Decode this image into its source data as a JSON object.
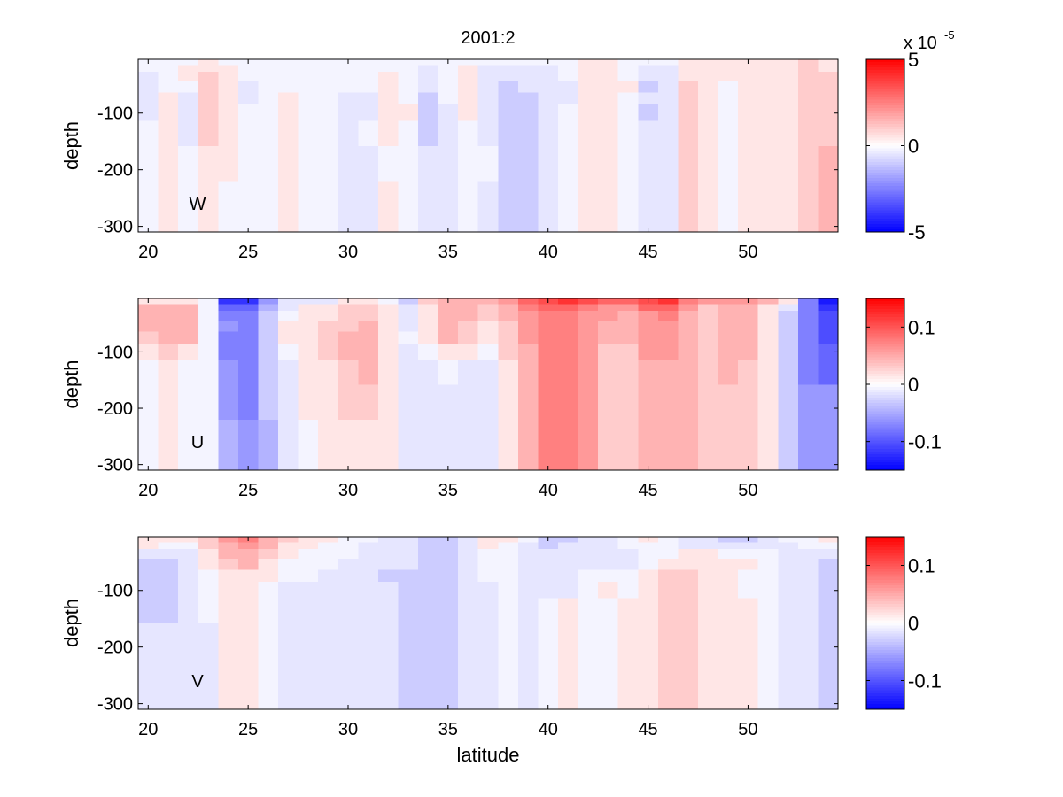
{
  "figure": {
    "title": "2001:2",
    "xlabel": "latitude"
  },
  "colors": {
    "neg": "#0000ff",
    "zero": "#ffffff",
    "pos": "#ff0000",
    "zero_tint": "#f4f4ff",
    "axis": "#000000"
  },
  "chart_data": [
    {
      "type": "heatmap",
      "panel_label": "W",
      "title": "2001:2",
      "xlabel": "",
      "ylabel": "depth",
      "xlim": [
        19.5,
        54.5
      ],
      "ylim": [
        -310,
        -5
      ],
      "xticks": [
        20,
        25,
        30,
        35,
        40,
        45,
        50
      ],
      "xtick_labels": [
        "20",
        "25",
        "30",
        "35",
        "40",
        "45",
        "50"
      ],
      "yticks": [
        -100,
        -200,
        -300
      ],
      "ytick_labels": [
        "-100",
        "-200",
        "-300"
      ],
      "latitudes": [
        20,
        21,
        22,
        23,
        24,
        25,
        26,
        27,
        28,
        29,
        30,
        31,
        32,
        33,
        34,
        35,
        36,
        37,
        38,
        39,
        40,
        41,
        42,
        43,
        44,
        45,
        46,
        47,
        48,
        49,
        50,
        51,
        52,
        53,
        54
      ],
      "depth_edges": [
        -5,
        -15,
        -27,
        -44,
        -64,
        -85,
        -114,
        -158,
        -220,
        -310
      ],
      "value_unit_scale": 5e-06,
      "values_note": "cell value = entry × value_unit_scale; rows listed per latitude from top depth layer to bottom",
      "values": [
        [
          0,
          0,
          -1,
          -1,
          -1,
          -1,
          0,
          0,
          0
        ],
        [
          0,
          0,
          0,
          0,
          1,
          1,
          1,
          1,
          1
        ],
        [
          0,
          1,
          1,
          0,
          -1,
          -1,
          -1,
          0,
          0
        ],
        [
          1,
          1,
          2,
          2,
          2,
          2,
          2,
          1,
          1
        ],
        [
          0,
          1,
          1,
          1,
          1,
          1,
          1,
          1,
          0
        ],
        [
          0,
          0,
          0,
          -1,
          -1,
          0,
          0,
          0,
          0
        ],
        [
          0,
          0,
          0,
          0,
          0,
          0,
          0,
          0,
          0
        ],
        [
          0,
          0,
          0,
          0,
          1,
          1,
          1,
          1,
          1
        ],
        [
          0,
          0,
          0,
          0,
          0,
          0,
          0,
          0,
          0
        ],
        [
          0,
          0,
          0,
          0,
          0,
          0,
          0,
          0,
          0
        ],
        [
          0,
          0,
          0,
          0,
          -1,
          -1,
          -1,
          -1,
          -1
        ],
        [
          0,
          0,
          0,
          0,
          -1,
          -1,
          0,
          -1,
          -1
        ],
        [
          0,
          0,
          1,
          1,
          1,
          1,
          1,
          0,
          1
        ],
        [
          0,
          0,
          0,
          0,
          0,
          1,
          0,
          0,
          0
        ],
        [
          0,
          -1,
          -1,
          -1,
          -2,
          -2,
          -2,
          -1,
          -1
        ],
        [
          0,
          0,
          0,
          0,
          0,
          -1,
          -1,
          -1,
          -1
        ],
        [
          0,
          1,
          1,
          1,
          1,
          1,
          0,
          0,
          0
        ],
        [
          0,
          -1,
          -1,
          -1,
          -1,
          -1,
          -1,
          0,
          -1
        ],
        [
          0,
          -1,
          -1,
          -2,
          -2,
          -2,
          -2,
          -2,
          -2
        ],
        [
          0,
          -1,
          -1,
          -1,
          -2,
          -2,
          -2,
          -2,
          -2
        ],
        [
          0,
          -1,
          -1,
          -1,
          -1,
          -1,
          -1,
          -1,
          -1
        ],
        [
          0,
          0,
          0,
          -1,
          -1,
          0,
          0,
          0,
          0
        ],
        [
          1,
          1,
          1,
          1,
          1,
          1,
          1,
          1,
          1
        ],
        [
          1,
          1,
          1,
          1,
          1,
          1,
          1,
          1,
          1
        ],
        [
          0,
          0,
          0,
          1,
          0,
          0,
          0,
          0,
          0
        ],
        [
          0,
          -1,
          -1,
          -2,
          -1,
          -2,
          -1,
          -1,
          -1
        ],
        [
          0,
          -1,
          -1,
          -1,
          -1,
          -1,
          -1,
          -1,
          -1
        ],
        [
          1,
          1,
          1,
          2,
          2,
          2,
          2,
          2,
          2
        ],
        [
          1,
          1,
          1,
          1,
          1,
          1,
          1,
          1,
          1
        ],
        [
          1,
          1,
          1,
          0,
          0,
          0,
          0,
          0,
          0
        ],
        [
          1,
          1,
          1,
          1,
          1,
          1,
          1,
          1,
          1
        ],
        [
          1,
          1,
          1,
          1,
          1,
          1,
          1,
          1,
          1
        ],
        [
          1,
          1,
          1,
          1,
          1,
          1,
          1,
          1,
          1
        ],
        [
          2,
          2,
          2,
          2,
          2,
          2,
          2,
          2,
          2
        ],
        [
          1,
          1,
          2,
          2,
          2,
          2,
          2,
          3,
          3
        ]
      ],
      "colorbar": {
        "clim": [
          -5,
          5
        ],
        "ticks": [
          5,
          0,
          -5
        ],
        "tick_labels": [
          "5",
          "0",
          "-5"
        ],
        "exponent_label": "x 10",
        "exponent": "-5"
      }
    },
    {
      "type": "heatmap",
      "panel_label": "U",
      "xlabel": "",
      "ylabel": "depth",
      "xlim": [
        19.5,
        54.5
      ],
      "ylim": [
        -310,
        -5
      ],
      "xticks": [
        20,
        25,
        30,
        35,
        40,
        45,
        50
      ],
      "xtick_labels": [
        "20",
        "25",
        "30",
        "35",
        "40",
        "45",
        "50"
      ],
      "yticks": [
        -100,
        -200,
        -300
      ],
      "ytick_labels": [
        "-100",
        "-200",
        "-300"
      ],
      "latitudes": [
        20,
        21,
        22,
        23,
        24,
        25,
        26,
        27,
        28,
        29,
        30,
        31,
        32,
        33,
        34,
        35,
        36,
        37,
        38,
        39,
        40,
        41,
        42,
        43,
        44,
        45,
        46,
        47,
        48,
        49,
        50,
        51,
        52,
        53,
        54
      ],
      "depth_edges": [
        -5,
        -15,
        -27,
        -44,
        -64,
        -85,
        -114,
        -158,
        -220,
        -310
      ],
      "value_unit_scale": 0.015,
      "values_note": "cell value = entry × value_unit_scale; rows listed per latitude from top depth layer to bottom",
      "values": [
        [
          1,
          3,
          3,
          3,
          2,
          1,
          0,
          0,
          0
        ],
        [
          1,
          3,
          3,
          3,
          3,
          2,
          1,
          1,
          1
        ],
        [
          1,
          3,
          3,
          3,
          3,
          1,
          0,
          0,
          0
        ],
        [
          0,
          0,
          0,
          0,
          0,
          0,
          0,
          0,
          0
        ],
        [
          -8,
          -6,
          -5,
          -4,
          -5,
          -5,
          -4,
          -4,
          -3
        ],
        [
          -8,
          -6,
          -5,
          -5,
          -5,
          -5,
          -5,
          -5,
          -4
        ],
        [
          -4,
          -3,
          -2,
          -2,
          -2,
          -2,
          -2,
          -2,
          -3
        ],
        [
          -1,
          -1,
          0,
          1,
          1,
          0,
          -1,
          -1,
          -1
        ],
        [
          -1,
          1,
          1,
          1,
          1,
          1,
          1,
          1,
          0
        ],
        [
          -1,
          1,
          1,
          2,
          2,
          2,
          1,
          1,
          1
        ],
        [
          1,
          2,
          2,
          2,
          3,
          3,
          2,
          2,
          1
        ],
        [
          1,
          2,
          2,
          3,
          3,
          3,
          3,
          2,
          1
        ],
        [
          0,
          1,
          1,
          1,
          1,
          1,
          1,
          1,
          1
        ],
        [
          -2,
          -1,
          -1,
          -1,
          0,
          -1,
          -1,
          -1,
          -1
        ],
        [
          2,
          1,
          1,
          1,
          1,
          0,
          -1,
          -1,
          -1
        ],
        [
          3,
          3,
          3,
          3,
          3,
          1,
          0,
          -1,
          -1
        ],
        [
          3,
          3,
          3,
          2,
          2,
          1,
          -1,
          -1,
          -1
        ],
        [
          3,
          2,
          2,
          1,
          1,
          0,
          -1,
          -1,
          -1
        ],
        [
          4,
          3,
          3,
          2,
          2,
          2,
          1,
          1,
          1
        ],
        [
          6,
          5,
          4,
          4,
          4,
          3,
          3,
          3,
          3
        ],
        [
          7,
          6,
          5,
          5,
          5,
          5,
          5,
          5,
          5
        ],
        [
          8,
          6,
          5,
          5,
          5,
          5,
          5,
          5,
          5
        ],
        [
          7,
          5,
          4,
          4,
          4,
          4,
          4,
          4,
          4
        ],
        [
          6,
          4,
          4,
          3,
          3,
          2,
          2,
          2,
          2
        ],
        [
          6,
          4,
          3,
          3,
          3,
          2,
          2,
          2,
          2
        ],
        [
          7,
          6,
          4,
          4,
          4,
          4,
          3,
          3,
          3
        ],
        [
          8,
          6,
          5,
          4,
          4,
          4,
          3,
          3,
          3
        ],
        [
          5,
          4,
          3,
          3,
          3,
          3,
          3,
          3,
          3
        ],
        [
          4,
          2,
          2,
          2,
          2,
          2,
          2,
          2,
          2
        ],
        [
          4,
          3,
          3,
          3,
          3,
          3,
          3,
          2,
          2
        ],
        [
          4,
          3,
          3,
          3,
          3,
          3,
          2,
          2,
          2
        ],
        [
          3,
          1,
          1,
          1,
          1,
          1,
          1,
          1,
          1
        ],
        [
          1,
          -1,
          -2,
          -2,
          -2,
          -2,
          -2,
          -2,
          -2
        ],
        [
          -5,
          -5,
          -5,
          -5,
          -5,
          -5,
          -5,
          -4,
          -4
        ],
        [
          -9,
          -8,
          -7,
          -7,
          -7,
          -6,
          -6,
          -4,
          -4
        ]
      ],
      "colorbar": {
        "clim": [
          -0.15,
          0.15
        ],
        "ticks": [
          0.1,
          0,
          -0.1
        ],
        "tick_labels": [
          "0.1",
          "0",
          "-0.1"
        ]
      }
    },
    {
      "type": "heatmap",
      "panel_label": "V",
      "xlabel": "latitude",
      "ylabel": "depth",
      "xlim": [
        19.5,
        54.5
      ],
      "ylim": [
        -310,
        -5
      ],
      "xticks": [
        20,
        25,
        30,
        35,
        40,
        45,
        50
      ],
      "xtick_labels": [
        "20",
        "25",
        "30",
        "35",
        "40",
        "45",
        "50"
      ],
      "yticks": [
        -100,
        -200,
        -300
      ],
      "ytick_labels": [
        "-100",
        "-200",
        "-300"
      ],
      "latitudes": [
        20,
        21,
        22,
        23,
        24,
        25,
        26,
        27,
        28,
        29,
        30,
        31,
        32,
        33,
        34,
        35,
        36,
        37,
        38,
        39,
        40,
        41,
        42,
        43,
        44,
        45,
        46,
        47,
        48,
        49,
        50,
        51,
        52,
        53,
        54
      ],
      "depth_edges": [
        -5,
        -15,
        -27,
        -44,
        -64,
        -85,
        -114,
        -158,
        -220,
        -310
      ],
      "value_unit_scale": 0.015,
      "values_note": "cell value = entry × value_unit_scale; rows listed per latitude from top depth layer to bottom",
      "values": [
        [
          1,
          1,
          -1,
          -2,
          -2,
          -2,
          -2,
          -1,
          -1
        ],
        [
          1,
          0,
          -1,
          -2,
          -2,
          -2,
          -2,
          -1,
          -1
        ],
        [
          1,
          0,
          -1,
          -1,
          -1,
          -1,
          -1,
          -1,
          -1
        ],
        [
          2,
          2,
          1,
          1,
          0,
          0,
          0,
          -1,
          -1
        ],
        [
          4,
          3,
          3,
          2,
          1,
          1,
          1,
          1,
          1
        ],
        [
          5,
          4,
          3,
          3,
          1,
          1,
          1,
          1,
          1
        ],
        [
          3,
          3,
          2,
          1,
          1,
          0,
          0,
          0,
          0
        ],
        [
          2,
          1,
          1,
          0,
          0,
          -1,
          -1,
          -1,
          -1
        ],
        [
          1,
          1,
          0,
          0,
          0,
          -1,
          -1,
          -1,
          -1
        ],
        [
          1,
          0,
          0,
          0,
          -1,
          -1,
          -1,
          -1,
          -1
        ],
        [
          0,
          0,
          0,
          -1,
          -1,
          -1,
          -1,
          -1,
          -1
        ],
        [
          0,
          -1,
          -1,
          -1,
          -1,
          -1,
          -1,
          -1,
          -1
        ],
        [
          -1,
          -1,
          -1,
          -1,
          -2,
          -1,
          -1,
          -1,
          -1
        ],
        [
          -1,
          -1,
          -1,
          -1,
          -2,
          -2,
          -2,
          -2,
          -2
        ],
        [
          -2,
          -2,
          -2,
          -2,
          -2,
          -2,
          -2,
          -2,
          -2
        ],
        [
          -2,
          -2,
          -2,
          -2,
          -2,
          -2,
          -2,
          -2,
          -2
        ],
        [
          -1,
          -1,
          -1,
          -1,
          -1,
          -1,
          -1,
          -1,
          -1
        ],
        [
          1,
          1,
          0,
          0,
          0,
          -1,
          -1,
          -1,
          -1
        ],
        [
          1,
          0,
          0,
          0,
          0,
          0,
          0,
          0,
          0
        ],
        [
          0,
          -1,
          -1,
          -1,
          -1,
          -1,
          -1,
          -1,
          -1
        ],
        [
          -2,
          -2,
          -1,
          -1,
          -1,
          -1,
          0,
          0,
          0
        ],
        [
          -2,
          -1,
          -1,
          -1,
          -1,
          -1,
          1,
          1,
          1
        ],
        [
          -1,
          -1,
          -1,
          -1,
          0,
          0,
          0,
          0,
          0
        ],
        [
          -1,
          -1,
          -1,
          -1,
          0,
          1,
          0,
          0,
          0
        ],
        [
          0,
          0,
          -1,
          -1,
          0,
          0,
          1,
          1,
          1
        ],
        [
          1,
          0,
          0,
          0,
          1,
          1,
          1,
          1,
          1
        ],
        [
          0,
          0,
          0,
          1,
          2,
          2,
          2,
          2,
          2
        ],
        [
          -1,
          -1,
          1,
          1,
          2,
          2,
          2,
          2,
          2
        ],
        [
          -1,
          -1,
          1,
          1,
          1,
          1,
          1,
          1,
          1
        ],
        [
          -2,
          -1,
          0,
          1,
          1,
          1,
          1,
          1,
          1
        ],
        [
          -2,
          -1,
          0,
          1,
          0,
          0,
          1,
          1,
          1
        ],
        [
          -1,
          -1,
          0,
          0,
          0,
          0,
          0,
          0,
          0
        ],
        [
          0,
          -1,
          -1,
          -1,
          -1,
          -1,
          -1,
          -1,
          -1
        ],
        [
          0,
          0,
          -1,
          -1,
          -1,
          -1,
          -1,
          -1,
          -1
        ],
        [
          1,
          0,
          -1,
          -2,
          -2,
          -2,
          -2,
          -2,
          -2
        ]
      ],
      "colorbar": {
        "clim": [
          -0.15,
          0.15
        ],
        "ticks": [
          0.1,
          0,
          -0.1
        ],
        "tick_labels": [
          "0.1",
          "0",
          "-0.1"
        ]
      }
    }
  ]
}
